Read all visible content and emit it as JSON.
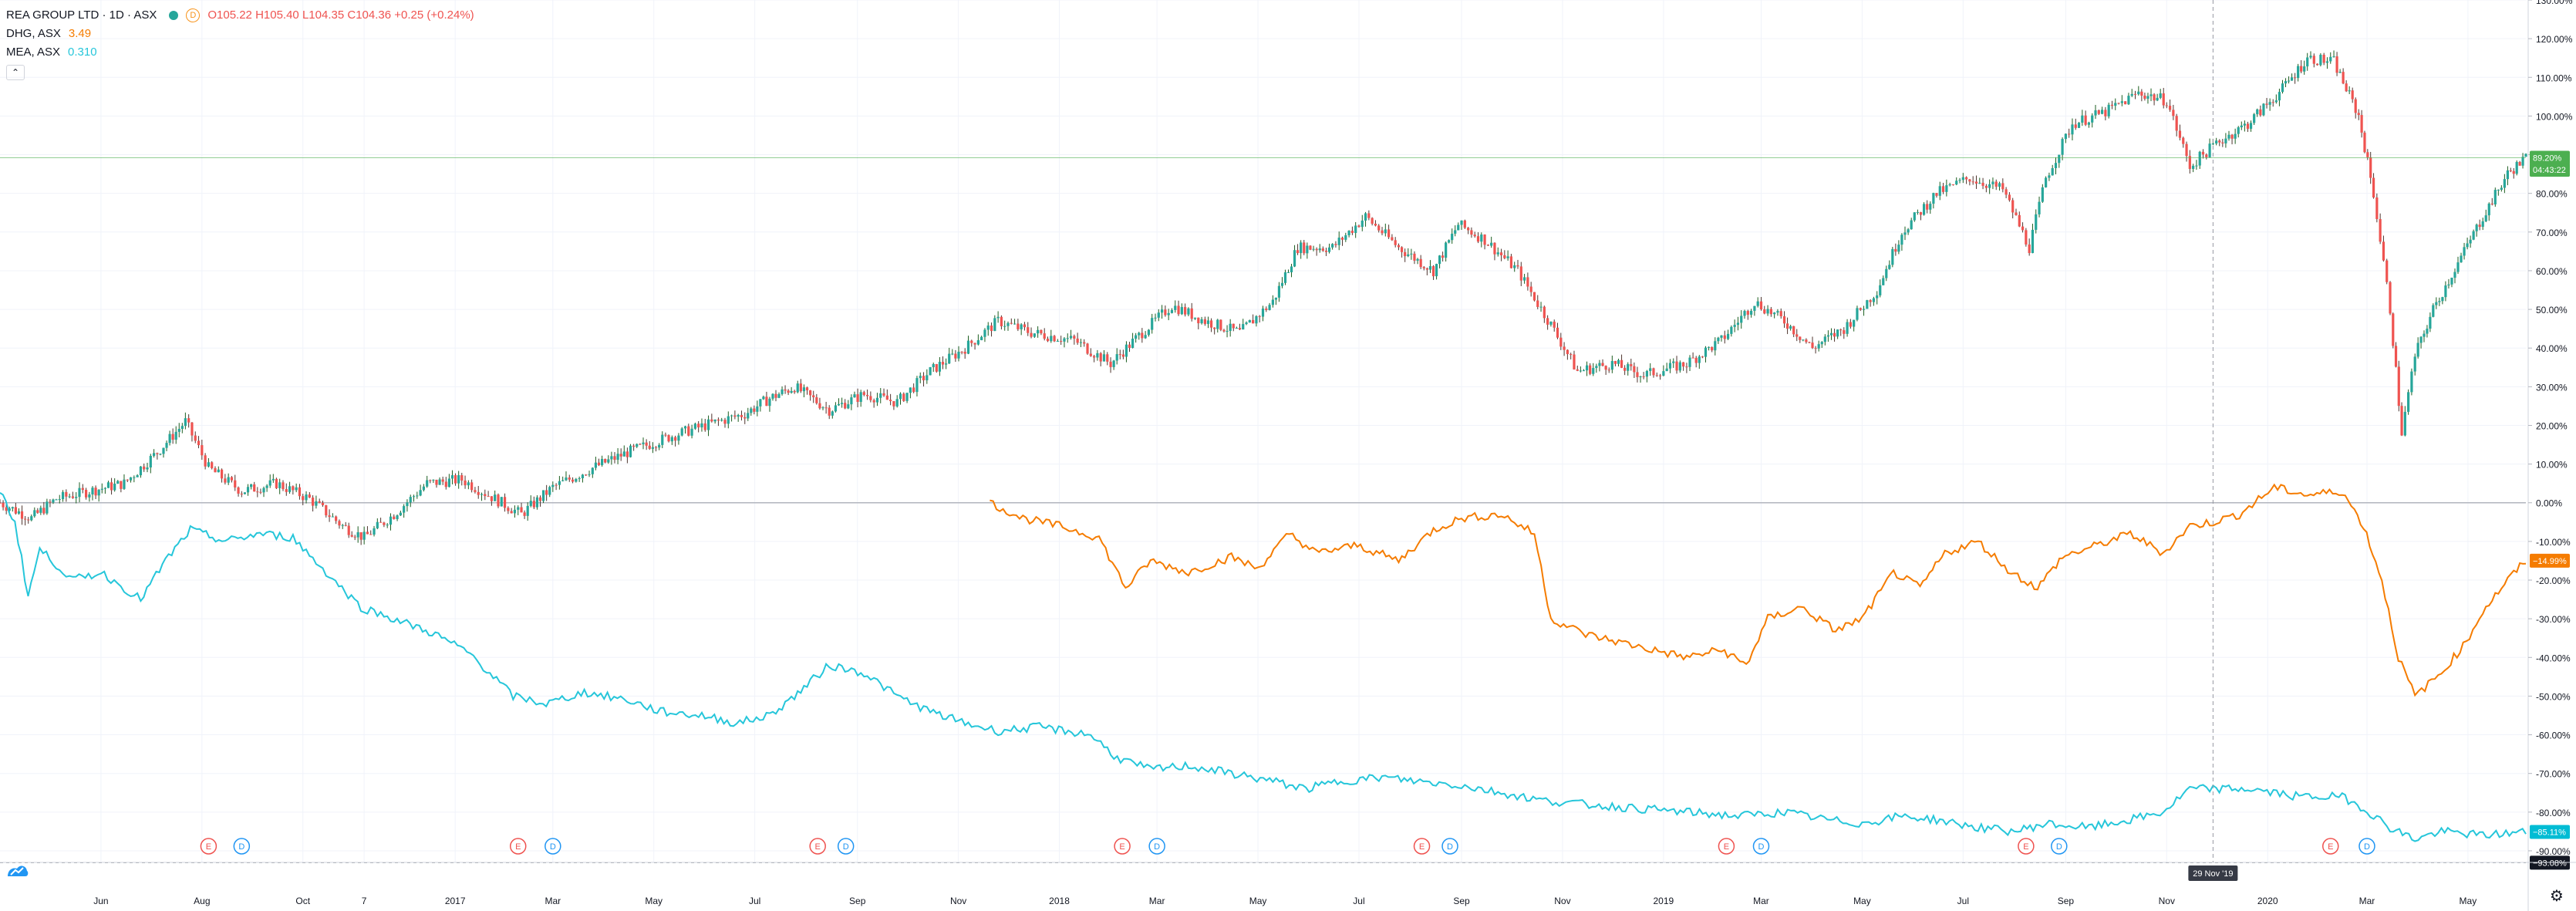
{
  "legend": {
    "main_symbol": "REA GROUP LTD · 1D · ASX",
    "ohlc_open": "O105.22",
    "ohlc_high": "H105.40",
    "ohlc_low": "L104.35",
    "ohlc_close": "C104.36",
    "ohlc_change": "+0.25 (+0.24%)",
    "compare1_symbol": "DHG, ASX",
    "compare1_value": "3.49",
    "compare2_symbol": "MEA, ASX",
    "compare2_value": "0.310",
    "badge_letter": "D"
  },
  "colors": {
    "up": "#26a69a",
    "down": "#ef5350",
    "series_dhg": "#f57c00",
    "series_mea": "#26c6da",
    "badge_green": "#4caf50",
    "badge_orange": "#f57c00",
    "badge_teal": "#00bcd4",
    "badge_dark": "#131722"
  },
  "chart_data": {
    "type": "line",
    "y_axis_unit": "%",
    "ylim": [
      -93,
      130
    ],
    "y_ticks": [
      "130.00%",
      "120.00%",
      "110.00%",
      "100.00%",
      "90.00%",
      "80.00%",
      "70.00%",
      "60.00%",
      "50.00%",
      "40.00%",
      "30.00%",
      "20.00%",
      "10.00%",
      "0.00%",
      "-10.00%",
      "-20.00%",
      "-30.00%",
      "-40.00%",
      "-50.00%",
      "-60.00%",
      "-70.00%",
      "-80.00%",
      "-90.00%"
    ],
    "x_range": [
      "2016-04-01",
      "2020-06-05"
    ],
    "x_ticks": [
      {
        "label": "Jun",
        "date": "2016-06-01"
      },
      {
        "label": "Aug",
        "date": "2016-08-01"
      },
      {
        "label": "Oct",
        "date": "2016-10-01"
      },
      {
        "label": "7",
        "date": "2016-11-07"
      },
      {
        "label": "2017",
        "date": "2017-01-01"
      },
      {
        "label": "Mar",
        "date": "2017-03-01"
      },
      {
        "label": "May",
        "date": "2017-05-01"
      },
      {
        "label": "Jul",
        "date": "2017-07-01"
      },
      {
        "label": "Sep",
        "date": "2017-09-01"
      },
      {
        "label": "Nov",
        "date": "2017-11-01"
      },
      {
        "label": "2018",
        "date": "2018-01-01"
      },
      {
        "label": "Mar",
        "date": "2018-03-01"
      },
      {
        "label": "May",
        "date": "2018-05-01"
      },
      {
        "label": "Jul",
        "date": "2018-07-01"
      },
      {
        "label": "Sep",
        "date": "2018-09-01"
      },
      {
        "label": "Nov",
        "date": "2018-11-01"
      },
      {
        "label": "2019",
        "date": "2019-01-01"
      },
      {
        "label": "Mar",
        "date": "2019-03-01"
      },
      {
        "label": "May",
        "date": "2019-05-01"
      },
      {
        "label": "Jul",
        "date": "2019-07-01"
      },
      {
        "label": "Sep",
        "date": "2019-09-01"
      },
      {
        "label": "Nov",
        "date": "2019-11-01"
      },
      {
        "label": "2020",
        "date": "2020-01-01"
      },
      {
        "label": "Mar",
        "date": "2020-03-01"
      },
      {
        "label": "May",
        "date": "2020-05-01"
      }
    ],
    "crosshair": {
      "date_label": "29 Nov '19",
      "date": "2019-11-29"
    },
    "last_value_labels": [
      {
        "text": "89.20%",
        "value": 89.2,
        "color": "#4caf50"
      },
      {
        "text": "04:43:22",
        "value": 86.1,
        "color": "#4caf50"
      },
      {
        "text": "−14.99%",
        "value": -14.99,
        "color": "#f57c00"
      },
      {
        "text": "−85.11%",
        "value": -85.11,
        "color": "#00bcd4"
      },
      {
        "text": "−93.08%",
        "value": -93.08,
        "color": "#131722"
      }
    ],
    "series": [
      {
        "name": "REA GROUP LTD",
        "style": "candles",
        "points": [
          [
            "2016-04-01",
            0
          ],
          [
            "2016-04-20",
            -4
          ],
          [
            "2016-05-05",
            1
          ],
          [
            "2016-05-25",
            3
          ],
          [
            "2016-06-15",
            5
          ],
          [
            "2016-07-05",
            13
          ],
          [
            "2016-07-22",
            21
          ],
          [
            "2016-08-05",
            9
          ],
          [
            "2016-08-25",
            3
          ],
          [
            "2016-09-15",
            5
          ],
          [
            "2016-10-05",
            1
          ],
          [
            "2016-10-25",
            -6
          ],
          [
            "2016-11-07",
            -9
          ],
          [
            "2016-11-25",
            -3
          ],
          [
            "2016-12-15",
            5
          ],
          [
            "2017-01-05",
            6
          ],
          [
            "2017-01-25",
            1
          ],
          [
            "2017-02-10",
            -3
          ],
          [
            "2017-03-01",
            4
          ],
          [
            "2017-03-25",
            9
          ],
          [
            "2017-04-15",
            13
          ],
          [
            "2017-05-10",
            17
          ],
          [
            "2017-06-01",
            20
          ],
          [
            "2017-06-25",
            23
          ],
          [
            "2017-07-10",
            27
          ],
          [
            "2017-07-25",
            30
          ],
          [
            "2017-08-15",
            24
          ],
          [
            "2017-09-05",
            28
          ],
          [
            "2017-09-25",
            26
          ],
          [
            "2017-10-15",
            34
          ],
          [
            "2017-11-05",
            40
          ],
          [
            "2017-11-25",
            47
          ],
          [
            "2017-12-15",
            44
          ],
          [
            "2018-01-10",
            42
          ],
          [
            "2018-02-01",
            36
          ],
          [
            "2018-02-20",
            44
          ],
          [
            "2018-03-10",
            51
          ],
          [
            "2018-03-30",
            47
          ],
          [
            "2018-04-20",
            44
          ],
          [
            "2018-05-10",
            52
          ],
          [
            "2018-05-25",
            66
          ],
          [
            "2018-06-15",
            66
          ],
          [
            "2018-07-05",
            74
          ],
          [
            "2018-07-25",
            66
          ],
          [
            "2018-08-15",
            60
          ],
          [
            "2018-08-30",
            72
          ],
          [
            "2018-09-15",
            68
          ],
          [
            "2018-10-05",
            60
          ],
          [
            "2018-10-25",
            46
          ],
          [
            "2018-11-10",
            34
          ],
          [
            "2018-12-01",
            36
          ],
          [
            "2018-12-20",
            33
          ],
          [
            "2019-01-15",
            36
          ],
          [
            "2019-02-05",
            42
          ],
          [
            "2019-02-25",
            52
          ],
          [
            "2019-03-15",
            47
          ],
          [
            "2019-04-01",
            40
          ],
          [
            "2019-04-20",
            45
          ],
          [
            "2019-05-10",
            55
          ],
          [
            "2019-05-25",
            70
          ],
          [
            "2019-06-15",
            80
          ],
          [
            "2019-07-05",
            84
          ],
          [
            "2019-07-25",
            81
          ],
          [
            "2019-08-10",
            66
          ],
          [
            "2019-08-20",
            84
          ],
          [
            "2019-09-05",
            98
          ],
          [
            "2019-09-25",
            101
          ],
          [
            "2019-10-15",
            106
          ],
          [
            "2019-11-01",
            104
          ],
          [
            "2019-11-15",
            87
          ],
          [
            "2019-12-01",
            93
          ],
          [
            "2019-12-20",
            98
          ],
          [
            "2020-01-10",
            107
          ],
          [
            "2020-01-25",
            115
          ],
          [
            "2020-02-10",
            114
          ],
          [
            "2020-02-25",
            100
          ],
          [
            "2020-03-05",
            80
          ],
          [
            "2020-03-15",
            50
          ],
          [
            "2020-03-22",
            18
          ],
          [
            "2020-03-30",
            38
          ],
          [
            "2020-04-10",
            50
          ],
          [
            "2020-04-25",
            62
          ],
          [
            "2020-05-10",
            74
          ],
          [
            "2020-05-25",
            85
          ],
          [
            "2020-06-05",
            89.2
          ]
        ]
      },
      {
        "name": "DHG, ASX",
        "style": "line",
        "points": [
          [
            "2017-11-20",
            0
          ],
          [
            "2017-12-10",
            -4
          ],
          [
            "2018-01-01",
            -6
          ],
          [
            "2018-01-25",
            -9
          ],
          [
            "2018-02-10",
            -22
          ],
          [
            "2018-02-25",
            -15
          ],
          [
            "2018-03-20",
            -18
          ],
          [
            "2018-04-15",
            -14
          ],
          [
            "2018-05-01",
            -17
          ],
          [
            "2018-05-20",
            -8
          ],
          [
            "2018-06-05",
            -13
          ],
          [
            "2018-06-30",
            -11
          ],
          [
            "2018-07-25",
            -15
          ],
          [
            "2018-08-15",
            -7
          ],
          [
            "2018-09-01",
            -4
          ],
          [
            "2018-09-25",
            -3
          ],
          [
            "2018-10-15",
            -8
          ],
          [
            "2018-10-25",
            -30
          ],
          [
            "2018-11-15",
            -34
          ],
          [
            "2018-12-05",
            -36
          ],
          [
            "2018-12-25",
            -38
          ],
          [
            "2019-01-15",
            -40
          ],
          [
            "2019-02-05",
            -38
          ],
          [
            "2019-02-20",
            -42
          ],
          [
            "2019-03-05",
            -30
          ],
          [
            "2019-03-25",
            -27
          ],
          [
            "2019-04-15",
            -33
          ],
          [
            "2019-05-01",
            -30
          ],
          [
            "2019-05-20",
            -18
          ],
          [
            "2019-06-05",
            -22
          ],
          [
            "2019-06-20",
            -13
          ],
          [
            "2019-07-10",
            -10
          ],
          [
            "2019-07-30",
            -18
          ],
          [
            "2019-08-15",
            -22
          ],
          [
            "2019-08-30",
            -14
          ],
          [
            "2019-09-20",
            -11
          ],
          [
            "2019-10-10",
            -8
          ],
          [
            "2019-10-30",
            -13
          ],
          [
            "2019-11-15",
            -6
          ],
          [
            "2019-11-29",
            -5
          ],
          [
            "2019-12-15",
            -3
          ],
          [
            "2020-01-05",
            4
          ],
          [
            "2020-01-25",
            2
          ],
          [
            "2020-02-15",
            3
          ],
          [
            "2020-02-28",
            -6
          ],
          [
            "2020-03-10",
            -20
          ],
          [
            "2020-03-20",
            -40
          ],
          [
            "2020-03-30",
            -50
          ],
          [
            "2020-04-15",
            -44
          ],
          [
            "2020-04-30",
            -36
          ],
          [
            "2020-05-10",
            -28
          ],
          [
            "2020-05-25",
            -20
          ],
          [
            "2020-06-05",
            -14.99
          ]
        ]
      },
      {
        "name": "MEA, ASX",
        "style": "line",
        "points": [
          [
            "2016-04-01",
            3
          ],
          [
            "2016-04-10",
            -5
          ],
          [
            "2016-04-18",
            -24
          ],
          [
            "2016-04-25",
            -12
          ],
          [
            "2016-05-15",
            -20
          ],
          [
            "2016-06-01",
            -18
          ],
          [
            "2016-06-25",
            -25
          ],
          [
            "2016-07-10",
            -15
          ],
          [
            "2016-07-25",
            -7
          ],
          [
            "2016-08-15",
            -10
          ],
          [
            "2016-09-05",
            -8
          ],
          [
            "2016-09-25",
            -9
          ],
          [
            "2016-10-15",
            -18
          ],
          [
            "2016-11-05",
            -27
          ],
          [
            "2016-11-25",
            -30
          ],
          [
            "2016-12-20",
            -34
          ],
          [
            "2017-01-10",
            -39
          ],
          [
            "2017-02-05",
            -50
          ],
          [
            "2017-02-25",
            -52
          ],
          [
            "2017-03-20",
            -49
          ],
          [
            "2017-04-15",
            -51
          ],
          [
            "2017-05-05",
            -54
          ],
          [
            "2017-05-30",
            -55
          ],
          [
            "2017-06-20",
            -57
          ],
          [
            "2017-07-10",
            -55
          ],
          [
            "2017-07-25",
            -50
          ],
          [
            "2017-08-15",
            -42
          ],
          [
            "2017-09-05",
            -44
          ],
          [
            "2017-09-25",
            -50
          ],
          [
            "2017-10-15",
            -54
          ],
          [
            "2017-11-05",
            -57
          ],
          [
            "2017-11-25",
            -59
          ],
          [
            "2017-12-20",
            -58
          ],
          [
            "2018-01-20",
            -60
          ],
          [
            "2018-02-05",
            -66
          ],
          [
            "2018-02-25",
            -69
          ],
          [
            "2018-03-20",
            -68
          ],
          [
            "2018-04-15",
            -70
          ],
          [
            "2018-05-10",
            -72
          ],
          [
            "2018-05-30",
            -74
          ],
          [
            "2018-06-20",
            -72
          ],
          [
            "2018-07-15",
            -71
          ],
          [
            "2018-08-05",
            -72
          ],
          [
            "2018-08-30",
            -73
          ],
          [
            "2018-09-25",
            -75
          ],
          [
            "2018-10-20",
            -77
          ],
          [
            "2018-11-15",
            -78
          ],
          [
            "2018-12-15",
            -79
          ],
          [
            "2019-01-15",
            -80
          ],
          [
            "2019-02-15",
            -81
          ],
          [
            "2019-03-15",
            -80
          ],
          [
            "2019-04-10",
            -82
          ],
          [
            "2019-05-01",
            -83
          ],
          [
            "2019-05-25",
            -81
          ],
          [
            "2019-06-15",
            -82
          ],
          [
            "2019-07-10",
            -84
          ],
          [
            "2019-08-01",
            -85
          ],
          [
            "2019-08-20",
            -83
          ],
          [
            "2019-09-15",
            -84
          ],
          [
            "2019-10-10",
            -82
          ],
          [
            "2019-10-30",
            -80
          ],
          [
            "2019-11-15",
            -74
          ],
          [
            "2019-11-29",
            -74
          ],
          [
            "2019-12-20",
            -74
          ],
          [
            "2020-01-20",
            -76
          ],
          [
            "2020-02-15",
            -76
          ],
          [
            "2020-02-28",
            -79
          ],
          [
            "2020-03-15",
            -84
          ],
          [
            "2020-03-30",
            -87
          ],
          [
            "2020-04-15",
            -85
          ],
          [
            "2020-05-10",
            -86
          ],
          [
            "2020-06-05",
            -85.11
          ]
        ]
      }
    ],
    "events": [
      {
        "type": "E",
        "date": "2016-08-05"
      },
      {
        "type": "D",
        "date": "2016-08-25"
      },
      {
        "type": "E",
        "date": "2017-02-08"
      },
      {
        "type": "D",
        "date": "2017-03-01"
      },
      {
        "type": "E",
        "date": "2017-08-08"
      },
      {
        "type": "D",
        "date": "2017-08-25"
      },
      {
        "type": "E",
        "date": "2018-02-08"
      },
      {
        "type": "D",
        "date": "2018-03-01"
      },
      {
        "type": "E",
        "date": "2018-08-08"
      },
      {
        "type": "D",
        "date": "2018-08-25"
      },
      {
        "type": "E",
        "date": "2019-02-08"
      },
      {
        "type": "D",
        "date": "2019-03-01"
      },
      {
        "type": "E",
        "date": "2019-08-08"
      },
      {
        "type": "D",
        "date": "2019-08-28"
      },
      {
        "type": "E",
        "date": "2020-02-08"
      },
      {
        "type": "D",
        "date": "2020-03-01"
      }
    ]
  }
}
